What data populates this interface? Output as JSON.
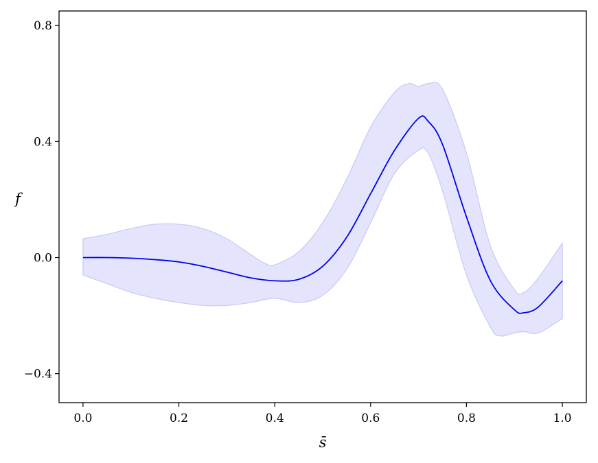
{
  "chart_data": {
    "type": "line",
    "title": "",
    "xlabel": "s̄",
    "ylabel": "f",
    "xlim": [
      -0.05,
      1.05
    ],
    "ylim": [
      -0.5,
      0.85
    ],
    "xticks": [
      0.0,
      0.2,
      0.4,
      0.6,
      0.8,
      1.0
    ],
    "xtick_labels": [
      "0.0",
      "0.2",
      "0.4",
      "0.6",
      "0.8",
      "1.0"
    ],
    "yticks": [
      0.8,
      0.4,
      0.0,
      -0.4
    ],
    "ytick_labels": [
      "0.8",
      "0.4",
      "0.0",
      "−0.4"
    ],
    "grid": false,
    "legend": "none",
    "colors": {
      "line": "#0000ee",
      "band_fill": "#e4e4fc",
      "band_edge": "#c9c9f6",
      "axes": "#000000"
    },
    "series": [
      {
        "kind": "mean",
        "x": [
          0.0,
          0.05,
          0.1,
          0.15,
          0.2,
          0.25,
          0.3,
          0.35,
          0.4,
          0.45,
          0.5,
          0.55,
          0.6,
          0.65,
          0.7,
          0.72,
          0.75,
          0.8,
          0.85,
          0.9,
          0.92,
          0.95,
          1.0
        ],
        "y": [
          0.0,
          0.0,
          -0.002,
          -0.007,
          -0.015,
          -0.03,
          -0.05,
          -0.07,
          -0.08,
          -0.075,
          -0.03,
          0.07,
          0.22,
          0.37,
          0.48,
          0.47,
          0.39,
          0.14,
          -0.08,
          -0.18,
          -0.19,
          -0.17,
          -0.08
        ]
      },
      {
        "kind": "band_upper",
        "x": [
          0.0,
          0.05,
          0.1,
          0.15,
          0.2,
          0.25,
          0.3,
          0.35,
          0.38,
          0.4,
          0.45,
          0.5,
          0.55,
          0.6,
          0.65,
          0.68,
          0.7,
          0.72,
          0.75,
          0.8,
          0.85,
          0.9,
          0.92,
          0.95,
          1.0
        ],
        "y": [
          0.065,
          0.08,
          0.1,
          0.115,
          0.115,
          0.1,
          0.065,
          0.01,
          -0.02,
          -0.025,
          0.02,
          0.12,
          0.27,
          0.45,
          0.57,
          0.6,
          0.59,
          0.6,
          0.58,
          0.36,
          0.04,
          -0.11,
          -0.12,
          -0.07,
          0.05
        ]
      },
      {
        "kind": "band_lower",
        "x": [
          0.0,
          0.05,
          0.1,
          0.15,
          0.2,
          0.25,
          0.3,
          0.35,
          0.4,
          0.45,
          0.5,
          0.55,
          0.6,
          0.65,
          0.7,
          0.72,
          0.75,
          0.8,
          0.85,
          0.87,
          0.9,
          0.92,
          0.95,
          1.0
        ],
        "y": [
          -0.06,
          -0.09,
          -0.12,
          -0.14,
          -0.155,
          -0.165,
          -0.165,
          -0.155,
          -0.14,
          -0.155,
          -0.13,
          -0.04,
          0.12,
          0.29,
          0.37,
          0.36,
          0.23,
          -0.06,
          -0.24,
          -0.27,
          -0.26,
          -0.255,
          -0.26,
          -0.21
        ]
      }
    ]
  }
}
